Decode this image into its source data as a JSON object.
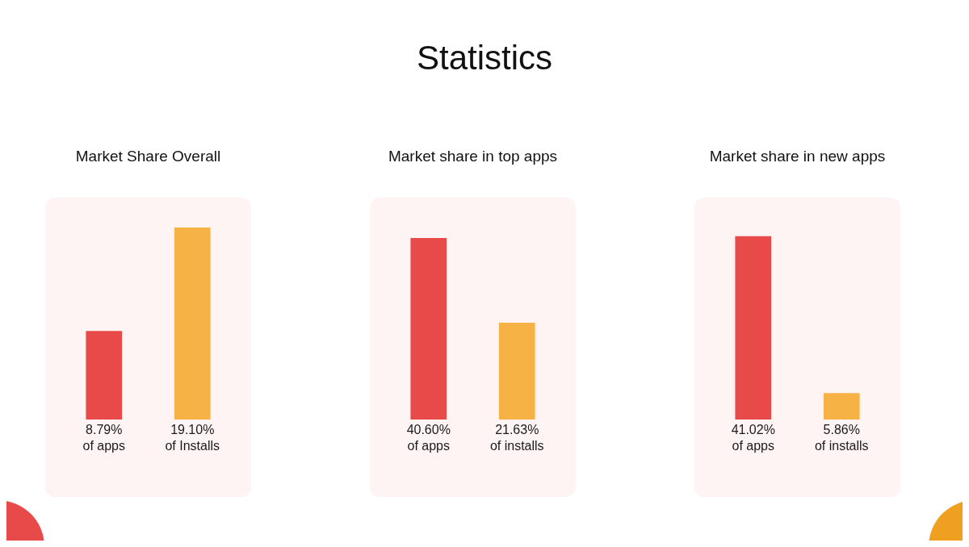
{
  "chart_data": [
    {
      "type": "bar",
      "title": "Market Share Overall",
      "annotations": [
        "Statistics"
      ],
      "categories": [
        "of apps",
        "of Installs"
      ],
      "values": [
        8.79,
        19.1
      ],
      "value_labels": [
        "8.79%",
        "19.10%"
      ],
      "colors": [
        "#e84a4a",
        "#f7b245"
      ],
      "tick_labels": false
    },
    {
      "type": "bar",
      "title": "Market share in top apps",
      "categories": [
        "of apps",
        "of installs"
      ],
      "values": [
        40.6,
        21.63
      ],
      "value_labels": [
        "40.60%",
        "21.63%"
      ],
      "colors": [
        "#e84a4a",
        "#f7b245"
      ],
      "tick_labels": false
    },
    {
      "type": "bar",
      "title": "Market share in new apps",
      "categories": [
        "of apps",
        "of installs"
      ],
      "values": [
        41.02,
        5.86
      ],
      "value_labels": [
        "41.02%",
        "5.86%"
      ],
      "colors": [
        "#e84a4a",
        "#f7b245"
      ],
      "tick_labels": false
    }
  ]
}
